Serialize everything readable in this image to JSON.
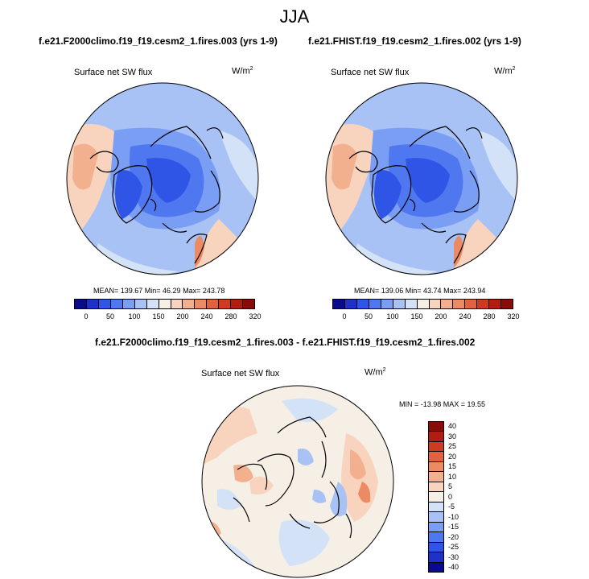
{
  "main_title": "JJA",
  "panels": [
    {
      "title": "f.e21.F2000climo.f19_f19.cesm2_1.fires.003 (yrs 1-9)",
      "variable": "Surface net SW flux",
      "units": "W/m",
      "units_sup": "2",
      "stats": "MEAN= 139.67  Min= 46.29  Max= 243.78"
    },
    {
      "title": "f.e21.FHIST.f19_f19.cesm2_1.fires.002 (yrs 1-9)",
      "variable": "Surface net SW flux",
      "units": "W/m",
      "units_sup": "2",
      "stats": "MEAN= 139.06  Min= 43.74  Max= 243.94"
    }
  ],
  "diff_panel": {
    "title": "f.e21.F2000climo.f19_f19.cesm2_1.fires.003 - f.e21.FHIST.f19_f19.cesm2_1.fires.002",
    "variable": "Surface net SW flux",
    "units": "W/m",
    "units_sup": "2",
    "stats": "MIN = -13.98 MAX =  19.55"
  },
  "colorbar_abs": {
    "ticks": [
      "0",
      "50",
      "100",
      "150",
      "200",
      "240",
      "280",
      "320"
    ],
    "colors": [
      "#0a0a8c",
      "#1f32c8",
      "#2f55e6",
      "#4f78f0",
      "#7a9ef4",
      "#a8c2f6",
      "#d4e2f8",
      "#f6efe6",
      "#f8d4be",
      "#f3b08f",
      "#ec8a64",
      "#e2623f",
      "#cf3a22",
      "#b01e12",
      "#8a0c08"
    ]
  },
  "colorbar_diff": {
    "ticks": [
      "40",
      "30",
      "25",
      "20",
      "15",
      "10",
      "5",
      "0",
      "-5",
      "-10",
      "-15",
      "-20",
      "-25",
      "-30",
      "-40"
    ],
    "colors": [
      "#8a0c08",
      "#b01e12",
      "#cf3a22",
      "#e2623f",
      "#ec8a64",
      "#f3b08f",
      "#f8d4be",
      "#f6efe6",
      "#d4e2f8",
      "#a8c2f6",
      "#7a9ef4",
      "#4f78f0",
      "#2f55e6",
      "#1f32c8",
      "#0a0a8c"
    ]
  }
}
